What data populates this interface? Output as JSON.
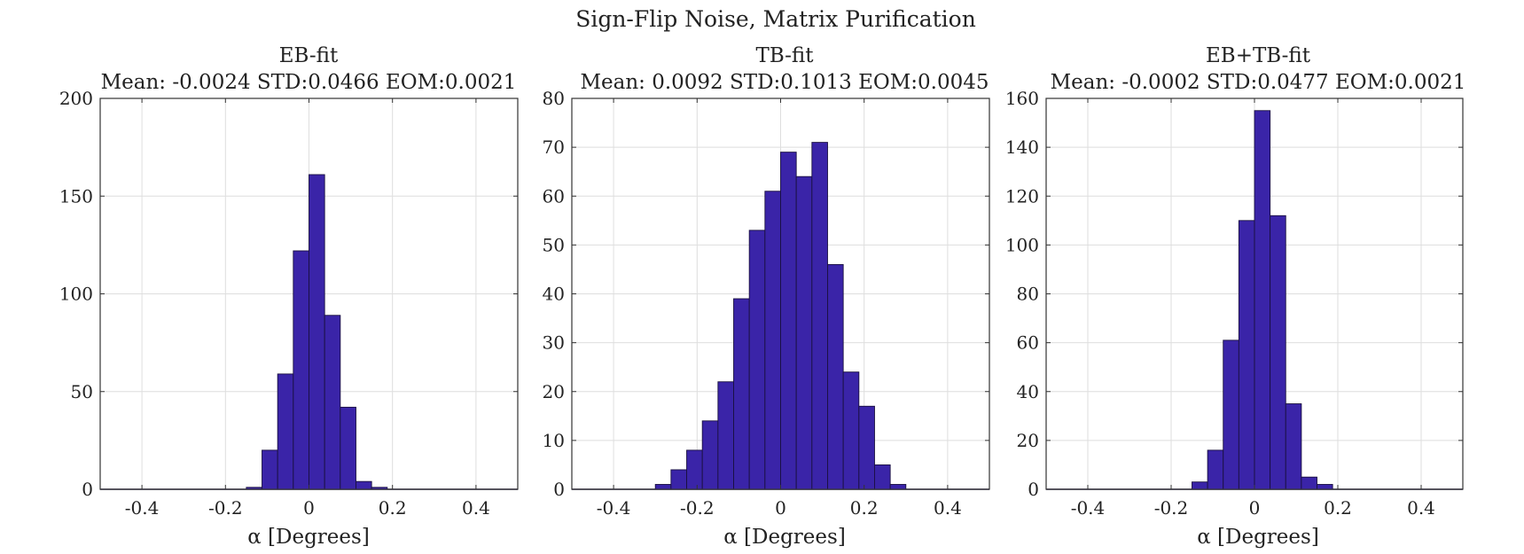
{
  "figure_title": "Sign-Flip Noise, Matrix Purification",
  "bar_color": "#3a24a8",
  "bar_edge_color": "#1a1040",
  "chart_data": [
    {
      "type": "bar",
      "title": "EB-fit",
      "subtitle": "Mean: -0.0024 STD:0.0466 EOM:0.0021",
      "xlabel": "α [Degrees]",
      "ylabel": "",
      "xlim": [
        -0.5,
        0.5
      ],
      "ylim": [
        0,
        200
      ],
      "xticks": [
        -0.4,
        -0.2,
        0,
        0.2,
        0.4
      ],
      "xtick_labels": [
        "-0.4",
        "-0.2",
        "0",
        "0.2",
        "0.4"
      ],
      "yticks": [
        0,
        50,
        100,
        150,
        200
      ],
      "ytick_labels": [
        "0",
        "50",
        "100",
        "150",
        "200"
      ],
      "grid": true,
      "bin_edges": [
        -0.1875,
        -0.15,
        -0.1125,
        -0.075,
        -0.0375,
        0,
        0.0375,
        0.075,
        0.1125,
        0.15,
        0.1875
      ],
      "values": [
        0,
        1,
        20,
        59,
        122,
        161,
        89,
        42,
        4,
        1
      ]
    },
    {
      "type": "bar",
      "title": "TB-fit",
      "subtitle": "Mean: 0.0092 STD:0.1013 EOM:0.0045",
      "xlabel": "α [Degrees]",
      "ylabel": "",
      "xlim": [
        -0.5,
        0.5
      ],
      "ylim": [
        0,
        80
      ],
      "xticks": [
        -0.4,
        -0.2,
        0,
        0.2,
        0.4
      ],
      "xtick_labels": [
        "-0.4",
        "-0.2",
        "0",
        "0.2",
        "0.4"
      ],
      "yticks": [
        0,
        10,
        20,
        30,
        40,
        50,
        60,
        70,
        80
      ],
      "ytick_labels": [
        "0",
        "10",
        "20",
        "30",
        "40",
        "50",
        "60",
        "70",
        "80"
      ],
      "grid": true,
      "bin_edges": [
        -0.3375,
        -0.3,
        -0.2625,
        -0.225,
        -0.1875,
        -0.15,
        -0.1125,
        -0.075,
        -0.0375,
        0,
        0.0375,
        0.075,
        0.1125,
        0.15,
        0.1875,
        0.225,
        0.2625,
        0.3
      ],
      "values": [
        0,
        1,
        4,
        8,
        14,
        22,
        39,
        53,
        61,
        69,
        64,
        71,
        46,
        24,
        17,
        5,
        1
      ]
    },
    {
      "type": "bar",
      "title": "EB+TB-fit",
      "subtitle": "Mean: -0.0002 STD:0.0477 EOM:0.0021",
      "xlabel": "α [Degrees]",
      "ylabel": "",
      "xlim": [
        -0.5,
        0.5
      ],
      "ylim": [
        0,
        160
      ],
      "xticks": [
        -0.4,
        -0.2,
        0,
        0.2,
        0.4
      ],
      "xtick_labels": [
        "-0.4",
        "-0.2",
        "0",
        "0.2",
        "0.4"
      ],
      "yticks": [
        0,
        20,
        40,
        60,
        80,
        100,
        120,
        140,
        160
      ],
      "ytick_labels": [
        "0",
        "20",
        "40",
        "60",
        "80",
        "100",
        "120",
        "140",
        "160"
      ],
      "grid": true,
      "bin_edges": [
        -0.1875,
        -0.15,
        -0.1125,
        -0.075,
        -0.0375,
        0,
        0.0375,
        0.075,
        0.1125,
        0.15,
        0.1875
      ],
      "values": [
        0,
        3,
        16,
        61,
        110,
        155,
        112,
        35,
        5,
        2
      ]
    }
  ]
}
